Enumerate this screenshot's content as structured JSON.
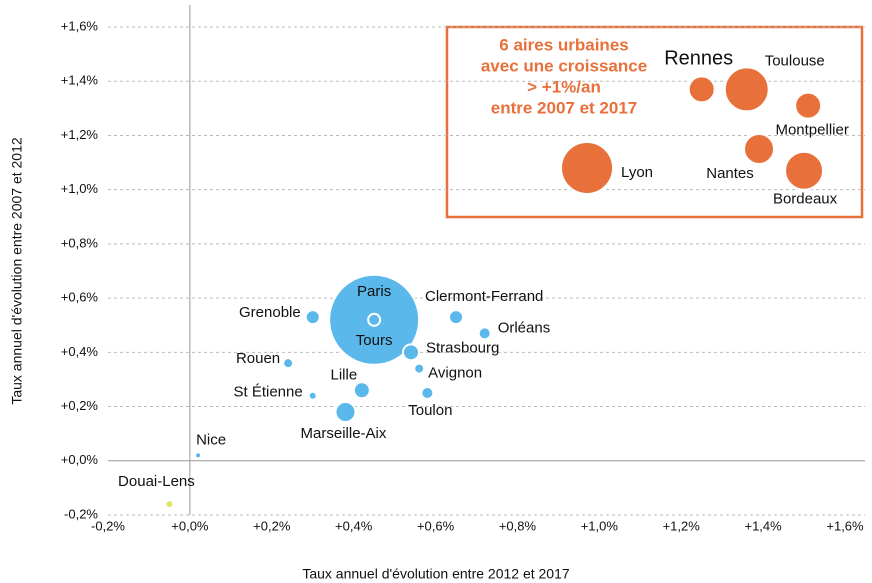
{
  "chart_data": {
    "type": "bubble",
    "x_label": "Taux annuel d'évolution entre 2012 et 2017",
    "y_label": "Taux annuel d'évolution entre 2007 et 2012",
    "xlim": [
      -0.2,
      1.6
    ],
    "ylim": [
      -0.2,
      1.6
    ],
    "xticks": [
      {
        "value": -0.2,
        "label": "-0,2%"
      },
      {
        "value": 0,
        "label": "+0,0%"
      },
      {
        "value": 0.2,
        "label": "+0,2%"
      },
      {
        "value": 0.4,
        "label": "+0,4%"
      },
      {
        "value": 0.6,
        "label": "+0,6%"
      },
      {
        "value": 0.8,
        "label": "+0,8%"
      },
      {
        "value": 1.0,
        "label": "+1,0%"
      },
      {
        "value": 1.2,
        "label": "+1,2%"
      },
      {
        "value": 1.4,
        "label": "+1,4%"
      },
      {
        "value": 1.6,
        "label": "+1,6%"
      }
    ],
    "yticks": [
      {
        "value": -0.2,
        "label": "-0,2%"
      },
      {
        "value": 0,
        "label": "+0,0%"
      },
      {
        "value": 0.2,
        "label": "+0,2%"
      },
      {
        "value": 0.4,
        "label": "+0,4%"
      },
      {
        "value": 0.6,
        "label": "+0,6%"
      },
      {
        "value": 0.8,
        "label": "+0,8%"
      },
      {
        "value": 1.0,
        "label": "+1,0%"
      },
      {
        "value": 1.2,
        "label": "+1,2%"
      },
      {
        "value": 1.4,
        "label": "+1,4%"
      },
      {
        "value": 1.6,
        "label": "+1,6%"
      }
    ],
    "grid": true,
    "annotation": [
      "6 aires urbaines",
      "avec une croissance",
      "> +1%/an",
      "entre 2007 et 2017"
    ],
    "series": [
      {
        "color": "#5bb8ea",
        "labels": [
          "Paris",
          "Tours",
          "Grenoble",
          "Clermont-Ferrand",
          "Orléans",
          "Strasbourg",
          "Avignon",
          "Rouen",
          "Lille",
          "St Étienne",
          "Toulon",
          "Marseille-Aix",
          "Nice"
        ],
        "x": [
          0.45,
          0.45,
          0.3,
          0.65,
          0.72,
          0.54,
          0.56,
          0.24,
          0.42,
          0.3,
          0.58,
          0.38,
          0.02
        ],
        "values": [
          0.52,
          0.52,
          0.53,
          0.53,
          0.47,
          0.4,
          0.34,
          0.36,
          0.26,
          0.24,
          0.25,
          0.18,
          0.02
        ],
        "sizes": [
          2025,
          36,
          49,
          49,
          36,
          64,
          25,
          25,
          64,
          16,
          36,
          100,
          9
        ]
      },
      {
        "color": "#e1e36a",
        "labels": [
          "Douai-Lens"
        ],
        "x": [
          -0.05
        ],
        "values": [
          -0.16
        ],
        "sizes": [
          16
        ]
      },
      {
        "color": "#e8703a",
        "labels": [
          "Rennes",
          "Toulouse",
          "Montpellier",
          "Nantes",
          "Bordeaux",
          "Lyon"
        ],
        "x": [
          1.25,
          1.36,
          1.51,
          1.39,
          1.5,
          0.97
        ],
        "values": [
          1.37,
          1.37,
          1.31,
          1.15,
          1.07,
          1.08
        ],
        "sizes": [
          169,
          484,
          169,
          225,
          361,
          676
        ]
      }
    ]
  }
}
